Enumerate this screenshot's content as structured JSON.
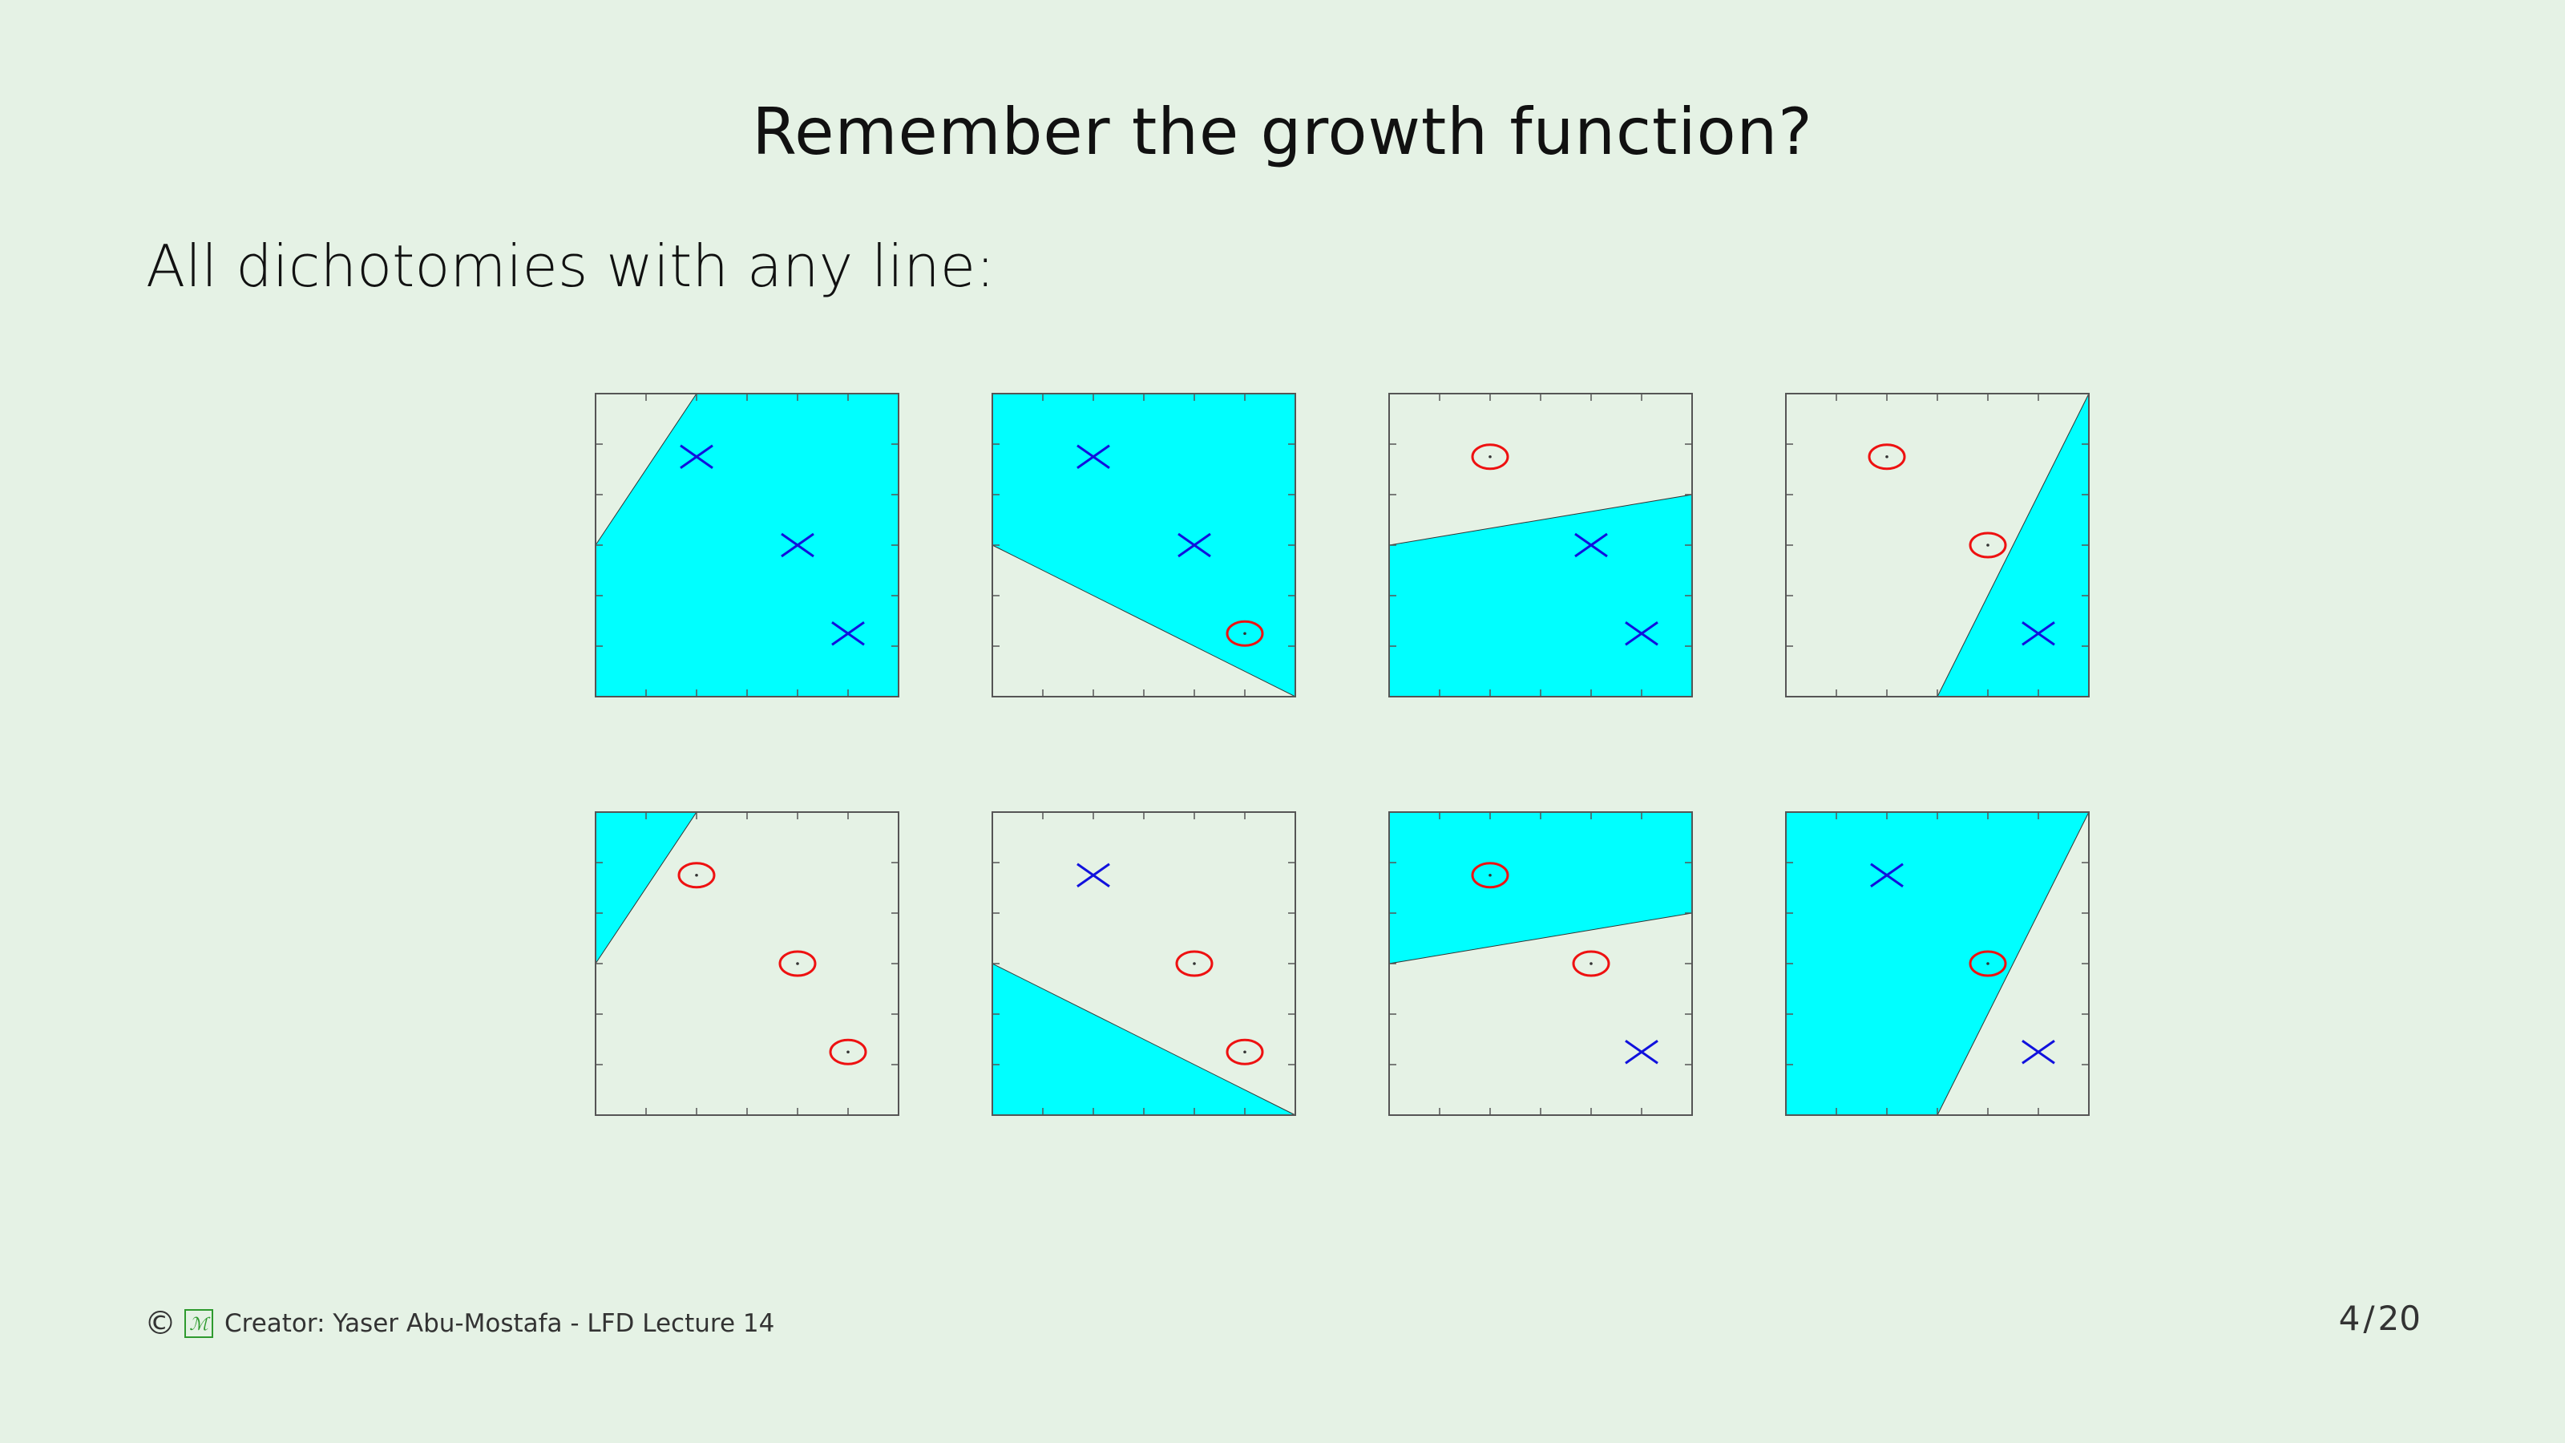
{
  "title": "Remember the growth function?",
  "subtitle": "All dichotomies with any line:",
  "footer": {
    "copyright": "©",
    "creator": "Creator:  Yaser Abu-Mostafa - LFD Lecture 14",
    "logo_icon": "learning-from-data-logo"
  },
  "page": {
    "current": "4",
    "separator": "/",
    "total": "20"
  },
  "colors": {
    "region": "#00ffff",
    "cross": "#1111dd",
    "circle": "#ee1111",
    "frame": "#555555"
  },
  "points": [
    {
      "x": 2,
      "y": 4.75
    },
    {
      "x": 4,
      "y": 3
    },
    {
      "x": 5,
      "y": 1.25
    }
  ],
  "axes": {
    "xlim": [
      0,
      6
    ],
    "ylim": [
      0,
      6
    ]
  },
  "dichotomies": [
    {
      "labels": [
        "x",
        "x",
        "x"
      ],
      "region": [
        [
          0,
          0
        ],
        [
          6,
          0
        ],
        [
          6,
          6
        ],
        [
          2,
          6
        ],
        [
          0,
          3
        ]
      ]
    },
    {
      "labels": [
        "x",
        "x",
        "o"
      ],
      "region": [
        [
          0,
          3
        ],
        [
          6,
          0
        ],
        [
          6,
          6
        ],
        [
          0,
          6
        ]
      ]
    },
    {
      "labels": [
        "o",
        "x",
        "x"
      ],
      "region": [
        [
          0,
          0
        ],
        [
          6,
          0
        ],
        [
          6,
          4
        ],
        [
          0,
          3
        ]
      ]
    },
    {
      "labels": [
        "o",
        "o",
        "x"
      ],
      "region": [
        [
          3,
          0
        ],
        [
          6,
          0
        ],
        [
          6,
          6
        ]
      ]
    },
    {
      "labels": [
        "o",
        "o",
        "o"
      ],
      "region": [
        [
          0,
          3
        ],
        [
          0,
          6
        ],
        [
          2,
          6
        ]
      ]
    },
    {
      "labels": [
        "x",
        "o",
        "o"
      ],
      "region": [
        [
          0,
          0
        ],
        [
          6,
          0
        ],
        [
          0,
          3
        ]
      ]
    },
    {
      "labels": [
        "o",
        "o",
        "x"
      ],
      "region": [
        [
          0,
          3
        ],
        [
          0,
          6
        ],
        [
          6,
          6
        ],
        [
          6,
          4
        ]
      ]
    },
    {
      "labels": [
        "x",
        "o",
        "x"
      ],
      "region": [
        [
          0,
          0
        ],
        [
          3,
          0
        ],
        [
          6,
          6
        ],
        [
          0,
          6
        ]
      ]
    }
  ]
}
